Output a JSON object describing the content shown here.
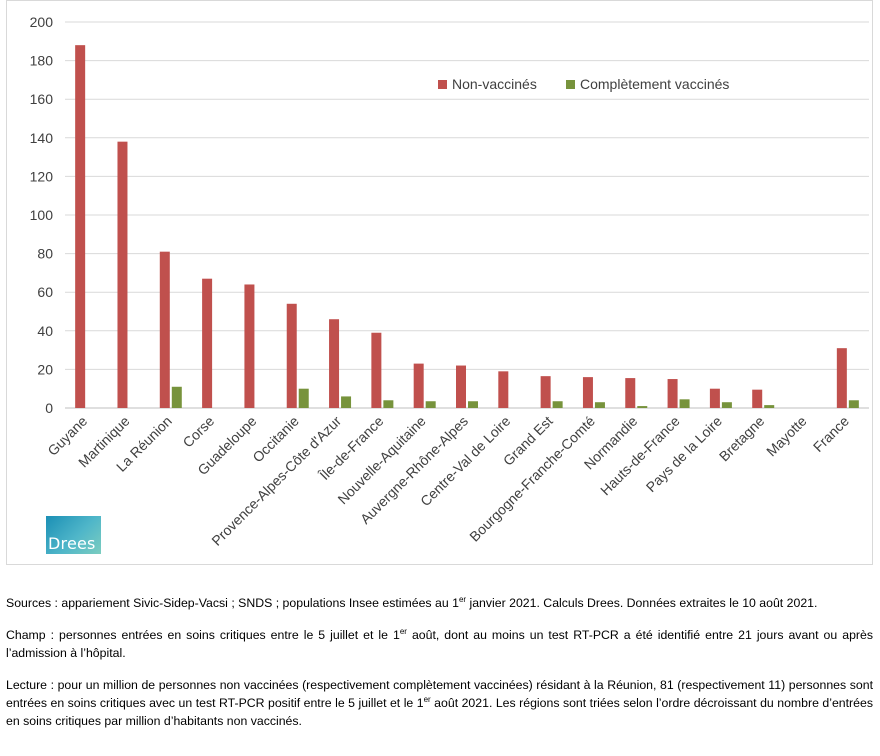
{
  "chart_data": {
    "type": "bar",
    "title": "",
    "xlabel": "",
    "ylabel": "",
    "ylim": [
      0,
      200
    ],
    "yticks": [
      0,
      20,
      40,
      60,
      80,
      100,
      120,
      140,
      160,
      180,
      200
    ],
    "grid": true,
    "legend_position": "top-right",
    "categories": [
      "Guyane",
      "Martinique",
      "La Réunion",
      "Corse",
      "Guadeloupe",
      "Occitanie",
      "Provence-Alpes-Côte d'Azur",
      "Île-de-France",
      "Nouvelle-Aquitaine",
      "Auvergne-Rhône-Alpes",
      "Centre-Val de Loire",
      "Grand Est",
      "Bourgogne-Franche-Comté",
      "Normandie",
      "Hauts-de-France",
      "Pays de la Loire",
      "Bretagne",
      "Mayotte",
      "France"
    ],
    "series": [
      {
        "name": "Non-vaccinés",
        "color": "#c0504d",
        "values": [
          188,
          138,
          81,
          67,
          64,
          54,
          46,
          39,
          23,
          22,
          19,
          16.5,
          16,
          15.5,
          15,
          10,
          9.5,
          0,
          31
        ]
      },
      {
        "name": "Complètement vaccinés",
        "color": "#77933c",
        "values": [
          0,
          0,
          11,
          0,
          0,
          10,
          6,
          4,
          3.5,
          3.5,
          0,
          3.5,
          3,
          1,
          4.5,
          3,
          1.5,
          0,
          4
        ]
      }
    ]
  },
  "logo": {
    "text": "Drees"
  },
  "notes": {
    "sources": {
      "a": "Sources : appariement Sivic-Sidep-Vacsi ; SNDS ; populations Insee estimées au 1",
      "sup": "er",
      "b": " janvier 2021. Calculs Drees. Données extraites le 10 août 2021."
    },
    "champ": {
      "a": "Champ : personnes entrées en soins critiques entre le 5 juillet et le 1",
      "sup": "er",
      "b": " août, dont au moins un test RT-PCR a été identifié entre 21 jours avant ou après l’admission à l’hôpital."
    },
    "lecture": {
      "a": "Lecture : pour un million de personnes non vaccinées (respectivement complètement vaccinées) résidant à la Réunion, 81 (respectivement 11) personnes sont entrées en soins critiques avec un test RT-PCR positif entre le 5 juillet et le 1",
      "sup": "er",
      "b": " août 2021. Les régions sont triées selon l’ordre décroissant du nombre d’entrées en soins critiques par million d’habitants non vaccinés."
    }
  }
}
